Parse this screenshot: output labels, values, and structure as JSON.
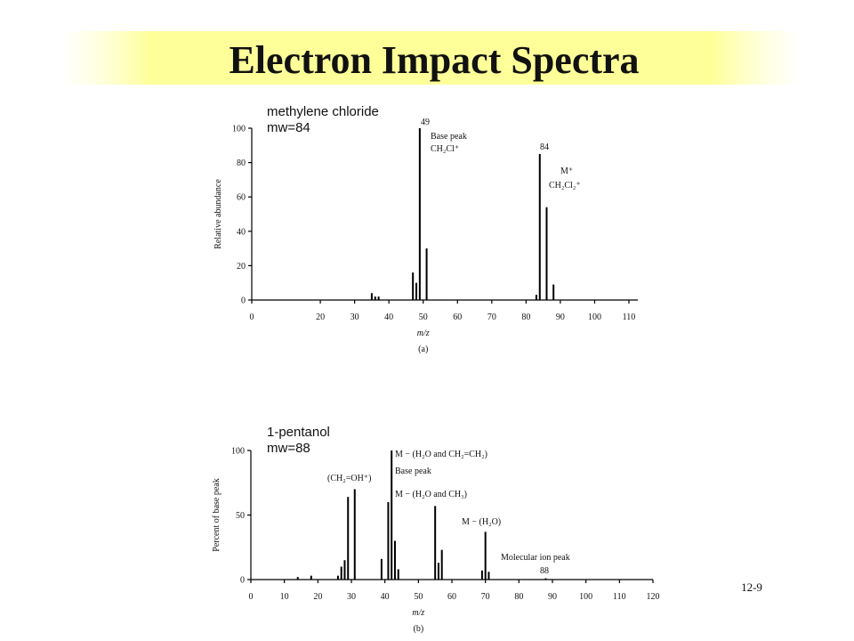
{
  "slide": {
    "title": "Electron Impact Spectra",
    "page": "12-9"
  },
  "chart_data": [
    {
      "type": "bar",
      "title": "methylene chloride",
      "subtitle": "mw=84",
      "ylabel": "Relative abundance",
      "xlabel": "m/z",
      "caption": "(a)",
      "color": "#000000",
      "x": [
        35,
        36,
        37,
        47,
        48,
        49,
        51,
        83,
        84,
        86,
        88
      ],
      "values": [
        4,
        2,
        2,
        16,
        10,
        100,
        30,
        3,
        85,
        54,
        9
      ],
      "xlim": [
        0,
        110
      ],
      "xticks": [
        0,
        20,
        30,
        40,
        50,
        60,
        70,
        80,
        90,
        100,
        110
      ],
      "ylim": [
        0,
        100
      ],
      "yticks": [
        0,
        20,
        40,
        60,
        80,
        100
      ],
      "annotations": [
        "49",
        "Base peak",
        "CH₂Cl⁺",
        "84",
        "M⁺",
        "CH₂Cl₂⁺"
      ]
    },
    {
      "type": "bar",
      "title": "1-pentanol",
      "subtitle": "mw=88",
      "ylabel": "Percent of base peak",
      "xlabel": "m/z",
      "caption": "(b)",
      "color": "#000000",
      "x": [
        14,
        18,
        26,
        27,
        28,
        29,
        31,
        39,
        41,
        42,
        43,
        44,
        55,
        56,
        57,
        69,
        70,
        71,
        88
      ],
      "values": [
        2,
        3,
        3,
        10,
        15,
        64,
        70,
        16,
        60,
        100,
        30,
        8,
        57,
        13,
        23,
        7,
        37,
        6,
        1
      ],
      "xlim": [
        0,
        120
      ],
      "xticks": [
        0,
        10,
        20,
        30,
        40,
        50,
        60,
        70,
        80,
        90,
        100,
        110,
        120
      ],
      "ylim": [
        0,
        100
      ],
      "yticks": [
        0,
        50,
        100
      ],
      "annotations": [
        "(CH₂=OH⁺)",
        "M − (H₂O and CH₂=CH₂)",
        "Base peak",
        "M − (H₂O and CH₃)",
        "M − (H₂O)",
        "Molecular ion peak",
        "88"
      ]
    }
  ]
}
